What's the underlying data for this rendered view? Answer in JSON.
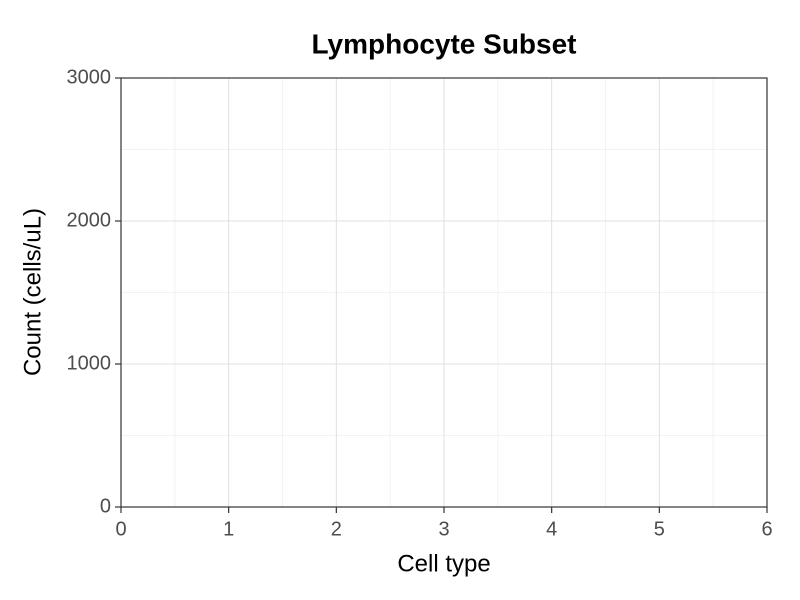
{
  "chart_data": {
    "type": "scatter",
    "title": "Lymphocyte Subset",
    "x_label": "Cell type",
    "y_label": "Count (cells/uL)",
    "xlim": [
      0,
      6
    ],
    "xticks": [
      0,
      1,
      2,
      3,
      4,
      5,
      6
    ],
    "ylim": [
      0,
      3000
    ],
    "yticks": [
      0,
      1000,
      2000,
      3000
    ],
    "grid": true
  }
}
